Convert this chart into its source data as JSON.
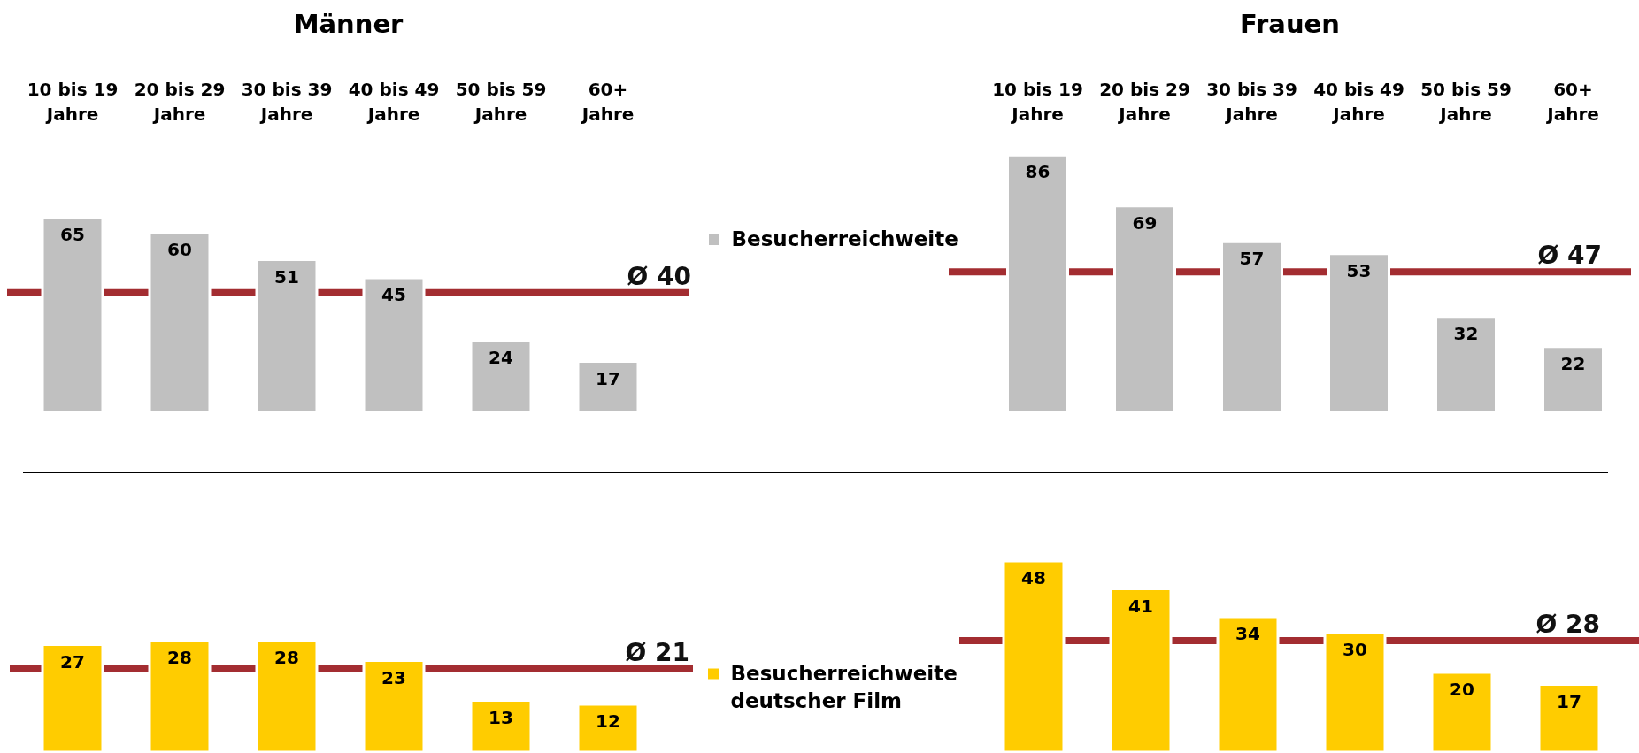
{
  "chart_data": [
    {
      "type": "bar",
      "title": "Männer",
      "categories": [
        "10 bis 19 Jahre",
        "20 bis 29 Jahre",
        "30 bis 39 Jahre",
        "40 bis 49 Jahre",
        "50 bis 59 Jahre",
        "60+ Jahre"
      ],
      "series": [
        {
          "name": "Besucherreichweite",
          "color": "#c0c0c0",
          "values": [
            65,
            60,
            51,
            45,
            24,
            17
          ]
        }
      ],
      "ref_lines": [
        {
          "axis": "y",
          "value": 40,
          "label": "Ø 40",
          "color": "#a32d31"
        }
      ],
      "data_labels": true,
      "legend": "right",
      "tick_labels": "x"
    },
    {
      "type": "bar",
      "title": "Frauen",
      "categories": [
        "10 bis 19 Jahre",
        "20 bis 29 Jahre",
        "30 bis 39 Jahre",
        "40 bis 49 Jahre",
        "50 bis 59 Jahre",
        "60+ Jahre"
      ],
      "series": [
        {
          "color": "#c0c0c0",
          "values": [
            86,
            69,
            57,
            53,
            32,
            22
          ]
        }
      ],
      "ref_lines": [
        {
          "axis": "y",
          "value": 47,
          "label": "Ø 47",
          "color": "#a32d31"
        }
      ],
      "data_labels": true,
      "tick_labels": "x"
    },
    {
      "type": "bar",
      "categories": [
        null,
        null,
        null,
        null,
        null,
        null
      ],
      "series": [
        {
          "name": "Besucherreichweite deutscher Film",
          "color": "#ffcc00",
          "values": [
            27,
            28,
            28,
            23,
            13,
            12
          ]
        }
      ],
      "ref_lines": [
        {
          "axis": "y",
          "value": 21,
          "label": "Ø 21",
          "color": "#a32d31"
        }
      ],
      "data_labels": true,
      "legend": "right",
      "tick_labels": false
    },
    {
      "type": "bar",
      "categories": [
        null,
        null,
        null,
        null,
        null,
        null
      ],
      "series": [
        {
          "color": "#ffcc00",
          "values": [
            48,
            41,
            34,
            30,
            20,
            17
          ]
        }
      ],
      "ref_lines": [
        {
          "axis": "y",
          "value": 28,
          "label": "Ø 28",
          "color": "#a32d31"
        }
      ],
      "data_labels": true,
      "tick_labels": false
    }
  ]
}
